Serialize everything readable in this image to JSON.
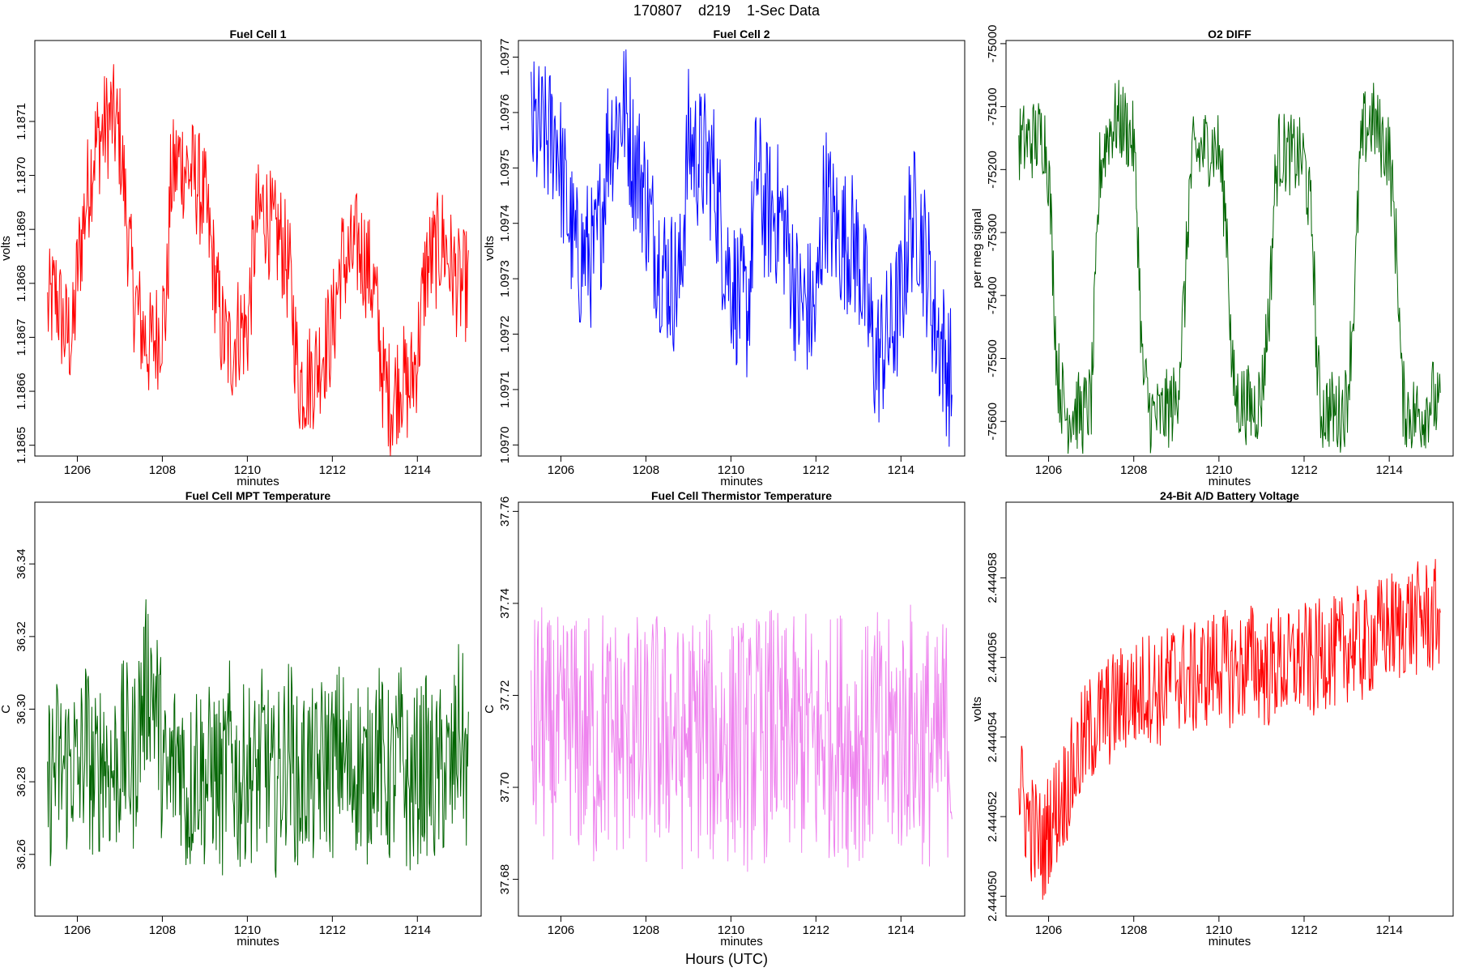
{
  "figure": {
    "title": "170807    d219    1-Sec Data",
    "xlabel": "Hours (UTC)"
  },
  "chart_data": [
    {
      "type": "line",
      "title": "Fuel Cell 1",
      "xlabel": "minutes",
      "ylabel": "volts",
      "color": "#ff0000",
      "xlim": [
        1205,
        1215.5
      ],
      "xticks": [
        1206,
        1208,
        1210,
        1212,
        1214
      ],
      "xtick_labels": [
        "1206",
        "1208",
        "1210",
        "1212",
        "1214"
      ],
      "ylim": [
        1.18648,
        1.18725
      ],
      "yticks": [
        1.1865,
        1.1866,
        1.1867,
        1.1868,
        1.1869,
        1.187,
        1.1871
      ],
      "ytick_labels": [
        "1.1865",
        "1.1866",
        "1.1867",
        "1.1868",
        "1.1869",
        "1.1870",
        "1.1871"
      ],
      "x": [
        1205.3,
        1205.5,
        1205.7,
        1205.9,
        1206.0,
        1206.2,
        1206.4,
        1206.6,
        1206.8,
        1207.0,
        1207.1,
        1207.3,
        1207.5,
        1207.7,
        1207.9,
        1208.1,
        1208.2,
        1208.4,
        1208.6,
        1208.8,
        1209.0,
        1209.2,
        1209.4,
        1209.6,
        1209.8,
        1210.0,
        1210.2,
        1210.4,
        1210.6,
        1210.8,
        1211.0,
        1211.2,
        1211.4,
        1211.6,
        1211.8,
        1212.0,
        1212.2,
        1212.4,
        1212.6,
        1212.8,
        1213.0,
        1213.2,
        1213.4,
        1213.6,
        1213.8,
        1214.0,
        1214.2,
        1214.4,
        1214.6,
        1214.8,
        1215.0,
        1215.2
      ],
      "values": [
        1.18675,
        1.18678,
        1.18671,
        1.1867,
        1.18682,
        1.18695,
        1.18705,
        1.18708,
        1.18711,
        1.18707,
        1.18698,
        1.18679,
        1.18672,
        1.18668,
        1.18671,
        1.18676,
        1.18699,
        1.18703,
        1.18701,
        1.18699,
        1.18695,
        1.18683,
        1.18671,
        1.18667,
        1.18672,
        1.18671,
        1.18691,
        1.18694,
        1.18689,
        1.18688,
        1.18681,
        1.18662,
        1.18662,
        1.18664,
        1.18668,
        1.18671,
        1.18684,
        1.18684,
        1.18687,
        1.18684,
        1.18678,
        1.18662,
        1.18658,
        1.18663,
        1.1866,
        1.18667,
        1.18683,
        1.18685,
        1.18688,
        1.18683,
        1.18679,
        1.1868
      ]
    },
    {
      "type": "line",
      "title": "Fuel Cell 2",
      "xlabel": "minutes",
      "ylabel": "volts",
      "color": "#0000ff",
      "xlim": [
        1205,
        1215.5
      ],
      "xticks": [
        1206,
        1208,
        1210,
        1212,
        1214
      ],
      "xtick_labels": [
        "1206",
        "1208",
        "1210",
        "1212",
        "1214"
      ],
      "ylim": [
        1.09698,
        1.09773
      ],
      "yticks": [
        1.097,
        1.0971,
        1.0972,
        1.0973,
        1.0974,
        1.0975,
        1.0976,
        1.0977
      ],
      "ytick_labels": [
        "1.0970",
        "1.0971",
        "1.0972",
        "1.0973",
        "1.0974",
        "1.0975",
        "1.0976",
        "1.0977"
      ],
      "x": [
        1205.3,
        1205.5,
        1205.7,
        1205.9,
        1206.0,
        1206.2,
        1206.4,
        1206.6,
        1206.8,
        1207.0,
        1207.1,
        1207.3,
        1207.5,
        1207.7,
        1207.9,
        1208.1,
        1208.2,
        1208.4,
        1208.6,
        1208.8,
        1209.0,
        1209.2,
        1209.4,
        1209.6,
        1209.8,
        1210.0,
        1210.2,
        1210.4,
        1210.6,
        1210.8,
        1211.0,
        1211.2,
        1211.4,
        1211.6,
        1211.8,
        1212.0,
        1212.2,
        1212.4,
        1212.6,
        1212.8,
        1213.0,
        1213.2,
        1213.4,
        1213.6,
        1213.8,
        1214.0,
        1214.2,
        1214.4,
        1214.6,
        1214.8,
        1215.0,
        1215.2
      ],
      "values": [
        1.09757,
        1.09756,
        1.09755,
        1.09757,
        1.0975,
        1.0974,
        1.09733,
        1.09735,
        1.09733,
        1.09745,
        1.09755,
        1.09758,
        1.09761,
        1.09752,
        1.09748,
        1.0974,
        1.09737,
        1.09732,
        1.0973,
        1.09729,
        1.09755,
        1.09752,
        1.09751,
        1.09749,
        1.09737,
        1.0973,
        1.09726,
        1.09724,
        1.0975,
        1.09742,
        1.09742,
        1.09741,
        1.09733,
        1.09725,
        1.09725,
        1.09723,
        1.09746,
        1.0974,
        1.09737,
        1.09737,
        1.09734,
        1.09725,
        1.09715,
        1.09718,
        1.09721,
        1.09726,
        1.0974,
        1.09741,
        1.09733,
        1.09722,
        1.09717,
        1.09711
      ]
    },
    {
      "type": "line",
      "title": "O2 DIFF",
      "xlabel": "minutes",
      "ylabel": "per meg signal",
      "color": "#006400",
      "xlim": [
        1205,
        1215.5
      ],
      "xticks": [
        1206,
        1208,
        1210,
        1212,
        1214
      ],
      "xtick_labels": [
        "1206",
        "1208",
        "1210",
        "1212",
        "1214"
      ],
      "ylim": [
        -75655,
        -74995
      ],
      "yticks": [
        -75600,
        -75500,
        -75400,
        -75300,
        -75200,
        -75100,
        -75000
      ],
      "ytick_labels": [
        "-75600",
        "-75500",
        "-75400",
        "-75300",
        "-75200",
        "-75100",
        "-75000"
      ],
      "x": [
        1205.3,
        1205.5,
        1205.7,
        1205.9,
        1206.0,
        1206.1,
        1206.2,
        1206.4,
        1206.6,
        1206.8,
        1207.0,
        1207.1,
        1207.2,
        1207.4,
        1207.6,
        1207.8,
        1208.0,
        1208.1,
        1208.2,
        1208.4,
        1208.6,
        1208.8,
        1209.0,
        1209.2,
        1209.3,
        1209.4,
        1209.6,
        1209.8,
        1210.0,
        1210.2,
        1210.3,
        1210.4,
        1210.6,
        1210.8,
        1211.0,
        1211.2,
        1211.3,
        1211.4,
        1211.6,
        1211.8,
        1212.0,
        1212.2,
        1212.3,
        1212.4,
        1212.6,
        1212.8,
        1213.0,
        1213.2,
        1213.3,
        1213.4,
        1213.6,
        1213.8,
        1214.0,
        1214.2,
        1214.3,
        1214.4,
        1214.6,
        1214.8,
        1215.0,
        1215.2
      ],
      "values": [
        -75160,
        -75155,
        -75150,
        -75145,
        -75200,
        -75350,
        -75520,
        -75590,
        -75580,
        -75590,
        -75570,
        -75400,
        -75200,
        -75140,
        -75120,
        -75130,
        -75160,
        -75300,
        -75520,
        -75590,
        -75595,
        -75580,
        -75570,
        -75400,
        -75240,
        -75180,
        -75170,
        -75160,
        -75170,
        -75300,
        -75520,
        -75565,
        -75570,
        -75580,
        -75560,
        -75400,
        -75240,
        -75170,
        -75175,
        -75180,
        -75185,
        -75300,
        -75510,
        -75585,
        -75580,
        -75590,
        -75570,
        -75380,
        -75200,
        -75140,
        -75120,
        -75150,
        -75170,
        -75360,
        -75560,
        -75580,
        -75590,
        -75585,
        -75560,
        -75590
      ]
    },
    {
      "type": "line",
      "title": "Fuel Cell MPT Temperature",
      "xlabel": "minutes",
      "ylabel": "C",
      "color": "#006400",
      "xlim": [
        1205,
        1215.5
      ],
      "xticks": [
        1206,
        1208,
        1210,
        1212,
        1214
      ],
      "xtick_labels": [
        "1206",
        "1208",
        "1210",
        "1212",
        "1214"
      ],
      "ylim": [
        36.243,
        36.357
      ],
      "yticks": [
        36.26,
        36.28,
        36.3,
        36.32,
        36.34
      ],
      "ytick_labels": [
        "36.26",
        "36.28",
        "36.30",
        "36.32",
        "36.34"
      ],
      "x": [
        1205.3,
        1205.5,
        1205.7,
        1205.9,
        1206.0,
        1206.2,
        1206.4,
        1206.6,
        1206.8,
        1207.0,
        1207.1,
        1207.3,
        1207.5,
        1207.7,
        1207.9,
        1208.1,
        1208.2,
        1208.4,
        1208.6,
        1208.8,
        1209.0,
        1209.2,
        1209.4,
        1209.6,
        1209.8,
        1210.0,
        1210.2,
        1210.4,
        1210.6,
        1210.8,
        1211.0,
        1211.2,
        1211.4,
        1211.6,
        1211.8,
        1212.0,
        1212.2,
        1212.4,
        1212.6,
        1212.8,
        1213.0,
        1213.2,
        1213.4,
        1213.6,
        1213.8,
        1214.0,
        1214.2,
        1214.4,
        1214.6,
        1214.8,
        1215.0,
        1215.2
      ],
      "values": [
        36.279,
        36.285,
        36.283,
        36.287,
        36.28,
        36.292,
        36.278,
        36.289,
        36.282,
        36.286,
        36.29,
        36.284,
        36.3,
        36.31,
        36.298,
        36.276,
        36.282,
        36.29,
        36.274,
        36.288,
        36.28,
        36.284,
        36.277,
        36.29,
        36.278,
        36.285,
        36.28,
        36.289,
        36.276,
        36.283,
        36.291,
        36.277,
        36.284,
        36.279,
        36.287,
        36.283,
        36.29,
        36.28,
        36.286,
        36.279,
        36.293,
        36.283,
        36.28,
        36.289,
        36.276,
        36.282,
        36.285,
        36.279,
        36.283,
        36.281,
        36.296,
        36.28
      ]
    },
    {
      "type": "line",
      "title": "Fuel Cell Thermistor Temperature",
      "xlabel": "minutes",
      "ylabel": "C",
      "color": "#ee82ee",
      "xlim": [
        1205,
        1215.5
      ],
      "xticks": [
        1206,
        1208,
        1210,
        1212,
        1214
      ],
      "xtick_labels": [
        "1206",
        "1208",
        "1210",
        "1212",
        "1214"
      ],
      "ylim": [
        37.672,
        37.762
      ],
      "yticks": [
        37.68,
        37.7,
        37.72,
        37.74,
        37.76
      ],
      "ytick_labels": [
        "37.68",
        "37.70",
        "37.72",
        "37.74",
        "37.76"
      ],
      "x": [
        1205.3,
        1205.5,
        1205.7,
        1205.9,
        1206.0,
        1206.2,
        1206.4,
        1206.6,
        1206.8,
        1207.0,
        1207.1,
        1207.3,
        1207.5,
        1207.7,
        1207.9,
        1208.1,
        1208.2,
        1208.4,
        1208.6,
        1208.8,
        1209.0,
        1209.2,
        1209.4,
        1209.6,
        1209.8,
        1210.0,
        1210.2,
        1210.4,
        1210.6,
        1210.8,
        1211.0,
        1211.2,
        1211.4,
        1211.6,
        1211.8,
        1212.0,
        1212.2,
        1212.4,
        1212.6,
        1212.8,
        1213.0,
        1213.2,
        1213.4,
        1213.6,
        1213.8,
        1214.0,
        1214.2,
        1214.4,
        1214.6,
        1214.8,
        1215.0,
        1215.2
      ],
      "values": [
        37.708,
        37.715,
        37.71,
        37.712,
        37.706,
        37.716,
        37.709,
        37.713,
        37.707,
        37.714,
        37.71,
        37.712,
        37.708,
        37.716,
        37.706,
        37.711,
        37.713,
        37.709,
        37.715,
        37.707,
        37.712,
        37.71,
        37.714,
        37.708,
        37.711,
        37.709,
        37.713,
        37.707,
        37.712,
        37.71,
        37.715,
        37.708,
        37.711,
        37.709,
        37.713,
        37.707,
        37.712,
        37.71,
        37.714,
        37.708,
        37.711,
        37.709,
        37.713,
        37.707,
        37.712,
        37.71,
        37.715,
        37.708,
        37.711,
        37.705,
        37.712,
        37.71
      ]
    },
    {
      "type": "line",
      "title": "24-Bit A/D Battery Voltage",
      "xlabel": "minutes",
      "ylabel": "volts",
      "color": "#ff0000",
      "xlim": [
        1205,
        1215.5
      ],
      "xticks": [
        1206,
        1208,
        1210,
        1212,
        1214
      ],
      "xtick_labels": [
        "1206",
        "1208",
        "1210",
        "1212",
        "1214"
      ],
      "ylim": [
        2.4440495,
        2.4440599
      ],
      "yticks": [
        2.44405,
        2.444052,
        2.444054,
        2.444056,
        2.444058
      ],
      "ytick_labels": [
        "2.444050",
        "2.444052",
        "2.444054",
        "2.444056",
        "2.444058"
      ],
      "x": [
        1205.3,
        1205.5,
        1205.7,
        1205.9,
        1206.0,
        1206.2,
        1206.4,
        1206.6,
        1206.8,
        1207.0,
        1207.1,
        1207.3,
        1207.5,
        1207.7,
        1207.9,
        1208.1,
        1208.2,
        1208.4,
        1208.6,
        1208.8,
        1209.0,
        1209.2,
        1209.4,
        1209.6,
        1209.8,
        1210.0,
        1210.2,
        1210.4,
        1210.6,
        1210.8,
        1211.0,
        1211.2,
        1211.4,
        1211.6,
        1211.8,
        1212.0,
        1212.2,
        1212.4,
        1212.6,
        1212.8,
        1213.0,
        1213.2,
        1213.4,
        1213.6,
        1213.8,
        1214.0,
        1214.2,
        1214.4,
        1214.6,
        1214.8,
        1215.0,
        1215.2
      ],
      "values": [
        2.4440528,
        2.444052,
        2.4440515,
        2.4440512,
        2.4440518,
        2.4440522,
        2.4440527,
        2.4440532,
        2.4440538,
        2.4440542,
        2.4440543,
        2.4440546,
        2.4440547,
        2.4440549,
        2.4440551,
        2.444055,
        2.4440552,
        2.4440553,
        2.4440551,
        2.4440554,
        2.4440556,
        2.4440555,
        2.4440554,
        2.4440556,
        2.4440557,
        2.4440559,
        2.4440557,
        2.4440556,
        2.4440558,
        2.444056,
        2.4440557,
        2.4440556,
        2.4440559,
        2.4440557,
        2.4440559,
        2.444056,
        2.4440558,
        2.4440561,
        2.4440562,
        2.444056,
        2.4440563,
        2.4440564,
        2.4440562,
        2.4440565,
        2.4440566,
        2.4440568,
        2.4440567,
        2.444057,
        2.4440569,
        2.4440571,
        2.4440569,
        2.4440572
      ]
    }
  ]
}
